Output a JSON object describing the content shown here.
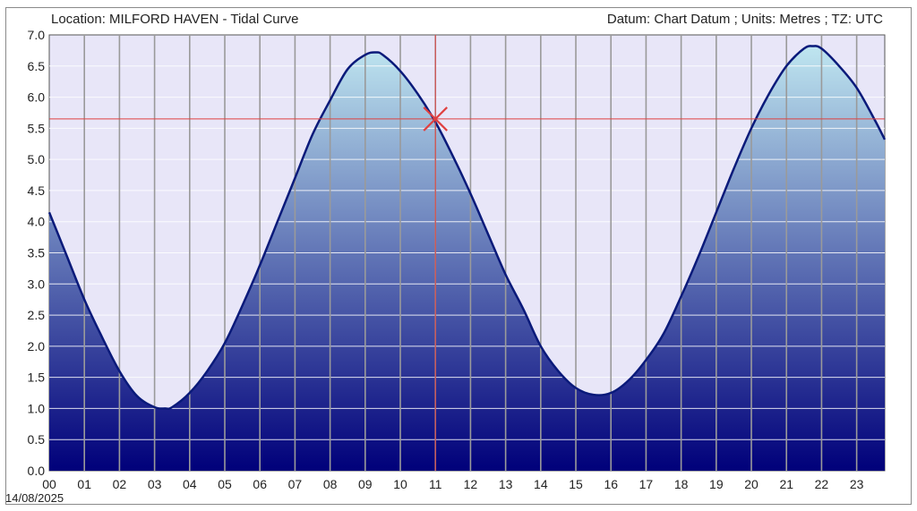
{
  "header": {
    "left": "Location: MILFORD HAVEN - Tidal Curve",
    "right": "Datum: Chart Datum ; Units: Metres ; TZ: UTC"
  },
  "date_label": "14/08/2025",
  "colors": {
    "plot_background": "#e8e6f8",
    "curve": "#0a1a7a",
    "fill_top": "#bfe6f0",
    "fill_bottom": "#00007a",
    "gridline": "#9a9a9a",
    "hgrid": "#ffffff",
    "cursor": "#e04040"
  },
  "chart_data": {
    "type": "area",
    "x_unit": "hour",
    "x_ticks": [
      "00",
      "01",
      "02",
      "03",
      "04",
      "05",
      "06",
      "07",
      "08",
      "09",
      "10",
      "11",
      "12",
      "13",
      "14",
      "15",
      "16",
      "17",
      "18",
      "19",
      "20",
      "21",
      "22",
      "23"
    ],
    "y_ticks": [
      "0.0",
      "0.5",
      "1.0",
      "1.5",
      "2.0",
      "2.5",
      "3.0",
      "3.5",
      "4.0",
      "4.5",
      "5.0",
      "5.5",
      "6.0",
      "6.5",
      "7.0"
    ],
    "xlim": [
      0,
      23.8
    ],
    "ylim": [
      0,
      7
    ],
    "series": [
      {
        "x": [
          0,
          0.5,
          1,
          1.5,
          2,
          2.5,
          3,
          3.3,
          3.5,
          4,
          4.5,
          5,
          5.5,
          6,
          6.5,
          7,
          7.5,
          8,
          8.5,
          9,
          9.3,
          9.5,
          10,
          10.5,
          11,
          11.5,
          12,
          12.5,
          13,
          13.5,
          14,
          14.5,
          15,
          15.5,
          16,
          16.5,
          17,
          17.5,
          18,
          18.5,
          19,
          19.5,
          20,
          20.5,
          21,
          21.5,
          21.75,
          22,
          22.5,
          23,
          23.5,
          23.8
        ],
        "y": [
          4.15,
          3.45,
          2.75,
          2.15,
          1.6,
          1.2,
          1.02,
          1.0,
          1.02,
          1.25,
          1.6,
          2.05,
          2.65,
          3.3,
          4.0,
          4.7,
          5.4,
          5.95,
          6.45,
          6.68,
          6.72,
          6.68,
          6.42,
          6.05,
          5.6,
          5.05,
          4.45,
          3.8,
          3.15,
          2.6,
          2.0,
          1.6,
          1.33,
          1.22,
          1.25,
          1.45,
          1.78,
          2.2,
          2.8,
          3.45,
          4.15,
          4.85,
          5.5,
          6.05,
          6.5,
          6.78,
          6.82,
          6.78,
          6.5,
          6.15,
          5.65,
          5.32
        ]
      }
    ],
    "cursor": {
      "x": 11,
      "y": 5.65
    },
    "grid": true
  }
}
